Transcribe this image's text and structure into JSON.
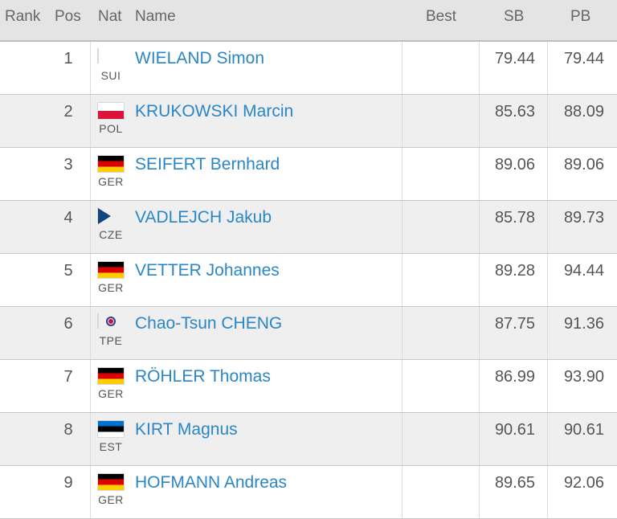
{
  "header": {
    "rank": "Rank",
    "pos": "Pos",
    "nat": "Nat",
    "name": "Name",
    "best": "Best",
    "sb": "SB",
    "pb": "PB"
  },
  "rows": [
    {
      "pos": "1",
      "nat": "SUI",
      "flag": "switzerland-flag-icon",
      "name": "WIELAND Simon",
      "best": "",
      "sb": "79.44",
      "pb": "79.44"
    },
    {
      "pos": "2",
      "nat": "POL",
      "flag": "poland-flag-icon",
      "name": "KRUKOWSKI Marcin",
      "best": "",
      "sb": "85.63",
      "pb": "88.09"
    },
    {
      "pos": "3",
      "nat": "GER",
      "flag": "germany-flag-icon",
      "name": "SEIFERT Bernhard",
      "best": "",
      "sb": "89.06",
      "pb": "89.06"
    },
    {
      "pos": "4",
      "nat": "CZE",
      "flag": "czech-flag-icon",
      "name": "VADLEJCH Jakub",
      "best": "",
      "sb": "85.78",
      "pb": "89.73"
    },
    {
      "pos": "5",
      "nat": "GER",
      "flag": "germany-flag-icon",
      "name": "VETTER Johannes",
      "best": "",
      "sb": "89.28",
      "pb": "94.44"
    },
    {
      "pos": "6",
      "nat": "TPE",
      "flag": "chinese-taipei-flag-icon",
      "name": "Chao-Tsun CHENG",
      "best": "",
      "sb": "87.75",
      "pb": "91.36"
    },
    {
      "pos": "7",
      "nat": "GER",
      "flag": "germany-flag-icon",
      "name": "RÖHLER Thomas",
      "best": "",
      "sb": "86.99",
      "pb": "93.90"
    },
    {
      "pos": "8",
      "nat": "EST",
      "flag": "estonia-flag-icon",
      "name": "KIRT Magnus",
      "best": "",
      "sb": "90.61",
      "pb": "90.61"
    },
    {
      "pos": "9",
      "nat": "GER",
      "flag": "germany-flag-icon",
      "name": "HOFMANN Andreas",
      "best": "",
      "sb": "89.65",
      "pb": "92.06"
    }
  ]
}
